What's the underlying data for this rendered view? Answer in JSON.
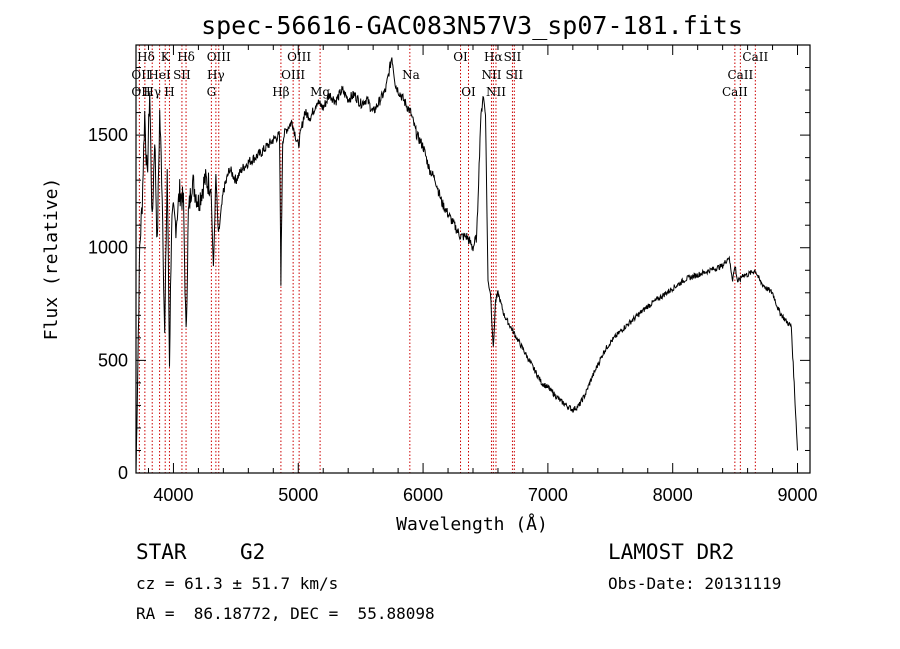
{
  "chart_data": {
    "type": "line",
    "title": "spec-56616-GAC083N57V3_sp07-181.fits",
    "xlabel": "Wavelength (Å)",
    "ylabel": "Flux (relative)",
    "xlim": [
      3700,
      9100
    ],
    "ylim": [
      0,
      1900
    ],
    "xticks": [
      4000,
      5000,
      6000,
      7000,
      8000,
      9000
    ],
    "yticks": [
      0,
      500,
      1000,
      1500
    ],
    "grid": false,
    "series": [
      {
        "x": [
          3700,
          3715,
          3730,
          3750,
          3770,
          3790,
          3810,
          3830,
          3850,
          3870,
          3890,
          3910,
          3930,
          3950,
          3968,
          3985,
          4000,
          4020,
          4050,
          4080,
          4101,
          4120,
          4150,
          4200,
          4250,
          4300,
          4320,
          4340,
          4360,
          4400,
          4450,
          4500,
          4550,
          4600,
          4650,
          4700,
          4750,
          4800,
          4850,
          4861,
          4875,
          4900,
          4950,
          5000,
          5050,
          5100,
          5150,
          5200,
          5250,
          5300,
          5350,
          5400,
          5450,
          5500,
          5550,
          5600,
          5650,
          5700,
          5750,
          5780,
          5800,
          5850,
          5900,
          5950,
          6000,
          6050,
          6100,
          6150,
          6200,
          6250,
          6300,
          6350,
          6400,
          6430,
          6460,
          6480,
          6500,
          6520,
          6540,
          6563,
          6580,
          6600,
          6650,
          6700,
          6750,
          6800,
          6850,
          6900,
          6950,
          7000,
          7050,
          7100,
          7150,
          7200,
          7250,
          7300,
          7350,
          7400,
          7450,
          7500,
          7600,
          7700,
          7800,
          7900,
          8000,
          8100,
          8200,
          8300,
          8400,
          8450,
          8480,
          8500,
          8520,
          8542,
          8560,
          8600,
          8662,
          8700,
          8750,
          8800,
          8850,
          8900,
          8950,
          9000
        ],
        "y": [
          0,
          500,
          1000,
          1200,
          1600,
          1300,
          1700,
          1100,
          1500,
          1000,
          1600,
          1250,
          600,
          1350,
          500,
          1100,
          1150,
          1100,
          1250,
          1200,
          600,
          1150,
          1300,
          1200,
          1300,
          1280,
          900,
          1320,
          1050,
          1250,
          1350,
          1300,
          1350,
          1380,
          1400,
          1420,
          1450,
          1480,
          1500,
          850,
          1480,
          1520,
          1560,
          1450,
          1600,
          1580,
          1650,
          1620,
          1680,
          1650,
          1700,
          1660,
          1680,
          1640,
          1660,
          1600,
          1650,
          1700,
          1850,
          1720,
          1700,
          1650,
          1600,
          1500,
          1450,
          1350,
          1300,
          1200,
          1150,
          1100,
          1050,
          1050,
          1000,
          1050,
          1550,
          1680,
          1600,
          850,
          800,
          550,
          760,
          800,
          700,
          650,
          600,
          550,
          500,
          450,
          400,
          380,
          350,
          320,
          300,
          280,
          300,
          350,
          420,
          480,
          540,
          580,
          640,
          690,
          740,
          780,
          820,
          860,
          880,
          900,
          920,
          960,
          860,
          920,
          850,
          860,
          880,
          880,
          900,
          850,
          820,
          800,
          720,
          680,
          650,
          100
        ]
      }
    ],
    "lines": [
      {
        "name": "Hδ",
        "wl": 3771,
        "row": 0,
        "side": "l"
      },
      {
        "name": "OII",
        "wl": 3727,
        "row": 1,
        "side": "r"
      },
      {
        "name": "HeI",
        "wl": 3889,
        "row": 1,
        "side": "c"
      },
      {
        "name": "K",
        "wl": 3934,
        "row": 0,
        "side": "c"
      },
      {
        "name": "Hδ",
        "wl": 4101,
        "row": 0,
        "side": "c"
      },
      {
        "name": "SII",
        "wl": 4068,
        "row": 1,
        "side": "c"
      },
      {
        "name": "OII",
        "wl": 3727,
        "row": 2,
        "side": "r"
      },
      {
        "name": "Hγ",
        "wl": 3830,
        "row": 2,
        "side": "c"
      },
      {
        "name": "H",
        "wl": 3968,
        "row": 2,
        "side": "c"
      },
      {
        "name": "OIII",
        "wl": 4363,
        "row": 0,
        "side": "c"
      },
      {
        "name": "Hγ",
        "wl": 4340,
        "row": 1,
        "side": "c"
      },
      {
        "name": "G",
        "wl": 4304,
        "row": 2,
        "side": "c"
      },
      {
        "name": "Hβ",
        "wl": 4861,
        "row": 2,
        "side": "c"
      },
      {
        "name": "OIII",
        "wl": 5007,
        "row": 0,
        "side": "c"
      },
      {
        "name": "OIII",
        "wl": 4959,
        "row": 1,
        "side": "c"
      },
      {
        "name": "Mg",
        "wl": 5175,
        "row": 2,
        "side": "c"
      },
      {
        "name": "Na",
        "wl": 5894,
        "row": 1,
        "side": "l"
      },
      {
        "name": "OI",
        "wl": 6300,
        "row": 0,
        "side": "c"
      },
      {
        "name": "OI",
        "wl": 6364,
        "row": 2,
        "side": "c"
      },
      {
        "name": "Hα",
        "wl": 6563,
        "row": 0,
        "side": "c"
      },
      {
        "name": "SII",
        "wl": 6716,
        "row": 0,
        "side": "c"
      },
      {
        "name": "NII",
        "wl": 6548,
        "row": 1,
        "side": "c"
      },
      {
        "name": "SII",
        "wl": 6731,
        "row": 1,
        "side": "c"
      },
      {
        "name": "NII",
        "wl": 6584,
        "row": 2,
        "side": "c"
      },
      {
        "name": "CaII",
        "wl": 8662,
        "row": 0,
        "side": "c"
      },
      {
        "name": "CaII",
        "wl": 8542,
        "row": 1,
        "side": "c"
      },
      {
        "name": "CaII",
        "wl": 8498,
        "row": 2,
        "side": "c"
      }
    ]
  },
  "info": {
    "class_label": "STAR",
    "subclass": "G2",
    "survey": "LAMOST DR2",
    "redshift": "cz = 61.3 ± 51.7 km/s",
    "obs_date": "Obs-Date: 20131119",
    "coords": "RA =  86.18772, DEC =  55.88098"
  },
  "colors": {
    "line_marker": "#cc0000",
    "spectrum": "#000000"
  }
}
